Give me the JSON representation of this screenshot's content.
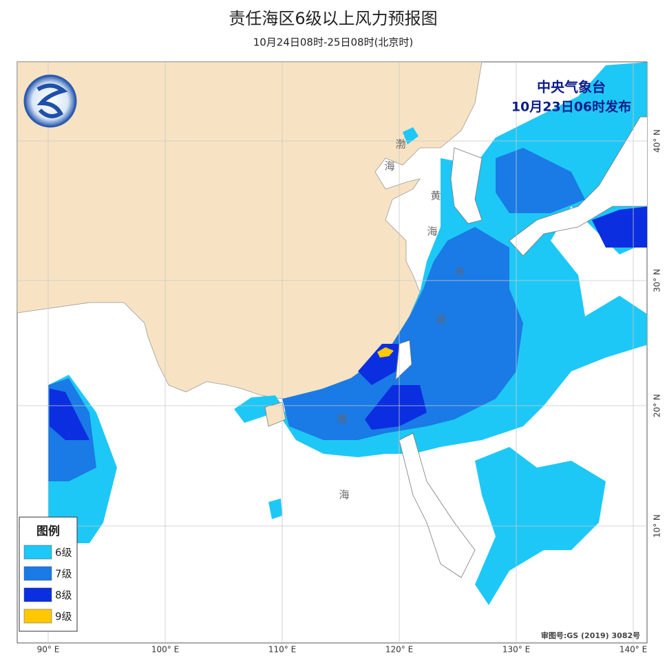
{
  "header": {
    "title": "责任海区6级以上风力预报图",
    "subtitle": "10月24日08时-25日08时(北京时)"
  },
  "issuer": {
    "name": "中央气象台",
    "issued": "10月23日06时发布"
  },
  "legend": {
    "title": "图例",
    "items": [
      {
        "label": "6级",
        "color": "#1ec8f6"
      },
      {
        "label": "7级",
        "color": "#1a7ae6"
      },
      {
        "label": "8级",
        "color": "#0b2ee0"
      },
      {
        "label": "9级",
        "color": "#ffc800"
      }
    ]
  },
  "longitudes": [
    "90° E",
    "100° E",
    "110° E",
    "120° E",
    "130° E",
    "140° E"
  ],
  "latitudes": [
    "40° N",
    "30° N",
    "20° N",
    "10° N"
  ],
  "sea_labels": {
    "bohai": [
      "渤",
      "海"
    ],
    "huanghai": [
      "黄",
      "海"
    ],
    "donghai": [
      "东",
      "海"
    ],
    "nanhai": [
      "南",
      "海"
    ]
  },
  "approval": "审图号:GS (2019) 3082号"
}
